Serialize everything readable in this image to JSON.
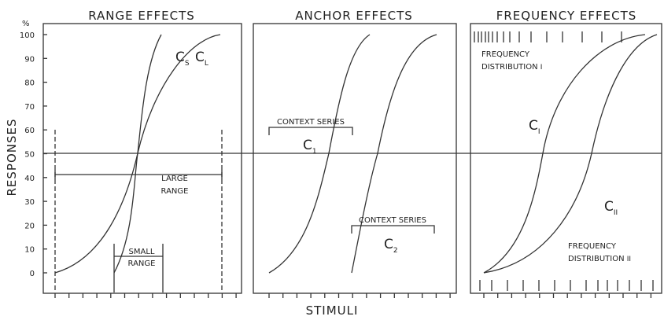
{
  "y_axis": {
    "unit": "%",
    "label": "RESPONSES",
    "ticks": [
      0,
      10,
      20,
      30,
      40,
      50,
      60,
      70,
      80,
      90,
      100
    ]
  },
  "x_axis": {
    "label": "STIMULI"
  },
  "panels": [
    {
      "title": "RANGE EFFECTS",
      "curves": [
        {
          "base": "C",
          "sub": "S"
        },
        {
          "base": "C",
          "sub": "L"
        }
      ],
      "annotations": [
        "LARGE",
        "RANGE",
        "SMALL",
        "RANGE"
      ]
    },
    {
      "title": "ANCHOR EFFECTS",
      "curves": [
        {
          "base": "C",
          "sub": "1"
        },
        {
          "base": "C",
          "sub": "2"
        }
      ],
      "annotations": [
        "CONTEXT SERIES",
        "CONTEXT SERIES"
      ]
    },
    {
      "title": "FREQUENCY EFFECTS",
      "curves": [
        {
          "base": "C",
          "sub": "I"
        },
        {
          "base": "C",
          "sub": "II"
        }
      ],
      "annotations": [
        "FREQUENCY",
        "DISTRIBUTION",
        "I",
        "FREQUENCY",
        "DISTRIBUTION",
        "II"
      ]
    }
  ]
}
